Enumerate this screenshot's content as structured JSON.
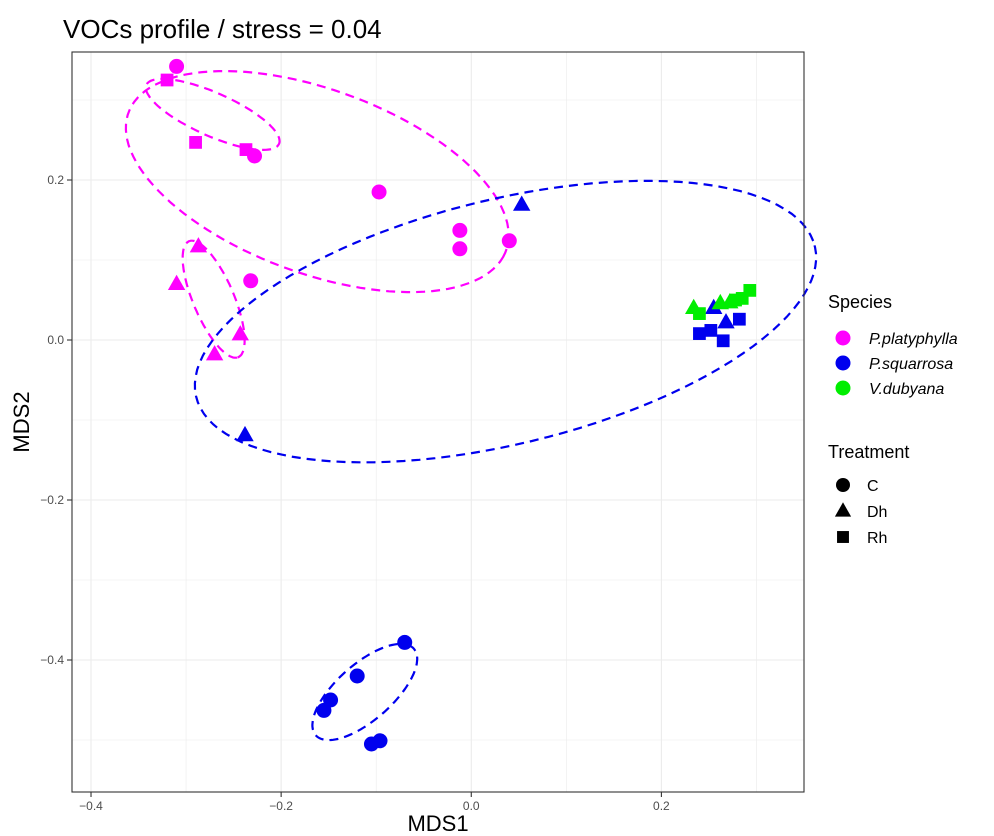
{
  "chart_data": {
    "type": "scatter",
    "title": "VOCs profile / stress = 0.04",
    "xlabel": "MDS1",
    "ylabel": "MDS2",
    "xlim": [
      -0.42,
      0.35
    ],
    "ylim": [
      -0.565,
      0.36
    ],
    "xticks": [
      -0.4,
      -0.2,
      0.0,
      0.2
    ],
    "xtick_labels": [
      "−0.4",
      "−0.2",
      "0.0",
      "0.2"
    ],
    "yticks": [
      -0.4,
      -0.2,
      0.0,
      0.2
    ],
    "ytick_labels": [
      "−0.4",
      "−0.2",
      "0.0",
      "0.2"
    ],
    "grid": true,
    "legend_position": "right",
    "legends": {
      "species": {
        "title": "Species",
        "entries": [
          {
            "name": "P.platyphylla",
            "color": "#ff00ff"
          },
          {
            "name": "P.squarrosa",
            "color": "#0000ee"
          },
          {
            "name": "V.dubyana",
            "color": "#00ee00"
          }
        ]
      },
      "treatment": {
        "title": "Treatment",
        "entries": [
          {
            "name": "C",
            "shape": "circle"
          },
          {
            "name": "Dh",
            "shape": "triangle"
          },
          {
            "name": "Rh",
            "shape": "square"
          }
        ]
      }
    },
    "points": [
      {
        "x": -0.31,
        "y": 0.342,
        "species": "P.platyphylla",
        "treatment": "C"
      },
      {
        "x": -0.228,
        "y": 0.23,
        "species": "P.platyphylla",
        "treatment": "C"
      },
      {
        "x": -0.097,
        "y": 0.185,
        "species": "P.platyphylla",
        "treatment": "C"
      },
      {
        "x": -0.012,
        "y": 0.137,
        "species": "P.platyphylla",
        "treatment": "C"
      },
      {
        "x": -0.012,
        "y": 0.114,
        "species": "P.platyphylla",
        "treatment": "C"
      },
      {
        "x": 0.04,
        "y": 0.124,
        "species": "P.platyphylla",
        "treatment": "C"
      },
      {
        "x": -0.232,
        "y": 0.074,
        "species": "P.platyphylla",
        "treatment": "C"
      },
      {
        "x": -0.32,
        "y": 0.325,
        "species": "P.platyphylla",
        "treatment": "Rh"
      },
      {
        "x": -0.29,
        "y": 0.247,
        "species": "P.platyphylla",
        "treatment": "Rh"
      },
      {
        "x": -0.237,
        "y": 0.238,
        "species": "P.platyphylla",
        "treatment": "Rh"
      },
      {
        "x": -0.287,
        "y": 0.117,
        "species": "P.platyphylla",
        "treatment": "Dh"
      },
      {
        "x": -0.31,
        "y": 0.07,
        "species": "P.platyphylla",
        "treatment": "Dh"
      },
      {
        "x": -0.243,
        "y": 0.007,
        "species": "P.platyphylla",
        "treatment": "Dh"
      },
      {
        "x": -0.27,
        "y": -0.018,
        "species": "P.platyphylla",
        "treatment": "Dh"
      },
      {
        "x": 0.053,
        "y": 0.169,
        "species": "P.squarrosa",
        "treatment": "Dh"
      },
      {
        "x": -0.238,
        "y": -0.119,
        "species": "P.squarrosa",
        "treatment": "Dh"
      },
      {
        "x": 0.255,
        "y": 0.04,
        "species": "P.squarrosa",
        "treatment": "Dh"
      },
      {
        "x": 0.268,
        "y": 0.022,
        "species": "P.squarrosa",
        "treatment": "Dh"
      },
      {
        "x": 0.24,
        "y": 0.008,
        "species": "P.squarrosa",
        "treatment": "Rh"
      },
      {
        "x": 0.252,
        "y": 0.012,
        "species": "P.squarrosa",
        "treatment": "Rh"
      },
      {
        "x": 0.265,
        "y": -0.001,
        "species": "P.squarrosa",
        "treatment": "Rh"
      },
      {
        "x": 0.282,
        "y": 0.026,
        "species": "P.squarrosa",
        "treatment": "Rh"
      },
      {
        "x": -0.07,
        "y": -0.378,
        "species": "P.squarrosa",
        "treatment": "C"
      },
      {
        "x": -0.12,
        "y": -0.42,
        "species": "P.squarrosa",
        "treatment": "C"
      },
      {
        "x": -0.148,
        "y": -0.45,
        "species": "P.squarrosa",
        "treatment": "C"
      },
      {
        "x": -0.155,
        "y": -0.463,
        "species": "P.squarrosa",
        "treatment": "C"
      },
      {
        "x": -0.105,
        "y": -0.505,
        "species": "P.squarrosa",
        "treatment": "C"
      },
      {
        "x": -0.096,
        "y": -0.501,
        "species": "P.squarrosa",
        "treatment": "C"
      },
      {
        "x": 0.234,
        "y": 0.04,
        "species": "V.dubyana",
        "treatment": "Dh"
      },
      {
        "x": 0.262,
        "y": 0.046,
        "species": "V.dubyana",
        "treatment": "Dh"
      },
      {
        "x": 0.272,
        "y": 0.047,
        "species": "V.dubyana",
        "treatment": "Dh"
      },
      {
        "x": 0.24,
        "y": 0.033,
        "species": "V.dubyana",
        "treatment": "Rh"
      },
      {
        "x": 0.278,
        "y": 0.05,
        "species": "V.dubyana",
        "treatment": "Rh"
      },
      {
        "x": 0.285,
        "y": 0.052,
        "species": "V.dubyana",
        "treatment": "Rh"
      },
      {
        "x": 0.293,
        "y": 0.062,
        "species": "V.dubyana",
        "treatment": "Rh"
      }
    ],
    "ellipses": [
      {
        "cx": -0.162,
        "cy": 0.198,
        "rx": 0.217,
        "ry": 0.112,
        "angle_deg": -25.8,
        "species": "P.platyphylla"
      },
      {
        "cx": -0.272,
        "cy": 0.282,
        "rx": 0.079,
        "ry": 0.026,
        "angle_deg": -28.8,
        "species": "P.platyphylla"
      },
      {
        "cx": -0.271,
        "cy": 0.051,
        "rx": 0.077,
        "ry": 0.022,
        "angle_deg": -71,
        "species": "P.platyphylla"
      },
      {
        "cx": 0.036,
        "cy": 0.023,
        "rx": 0.339,
        "ry": 0.151,
        "angle_deg": 17.3,
        "species": "P.squarrosa"
      },
      {
        "cx": -0.112,
        "cy": -0.44,
        "rx": 0.075,
        "ry": 0.032,
        "angle_deg": 48.6,
        "species": "P.squarrosa"
      }
    ]
  }
}
